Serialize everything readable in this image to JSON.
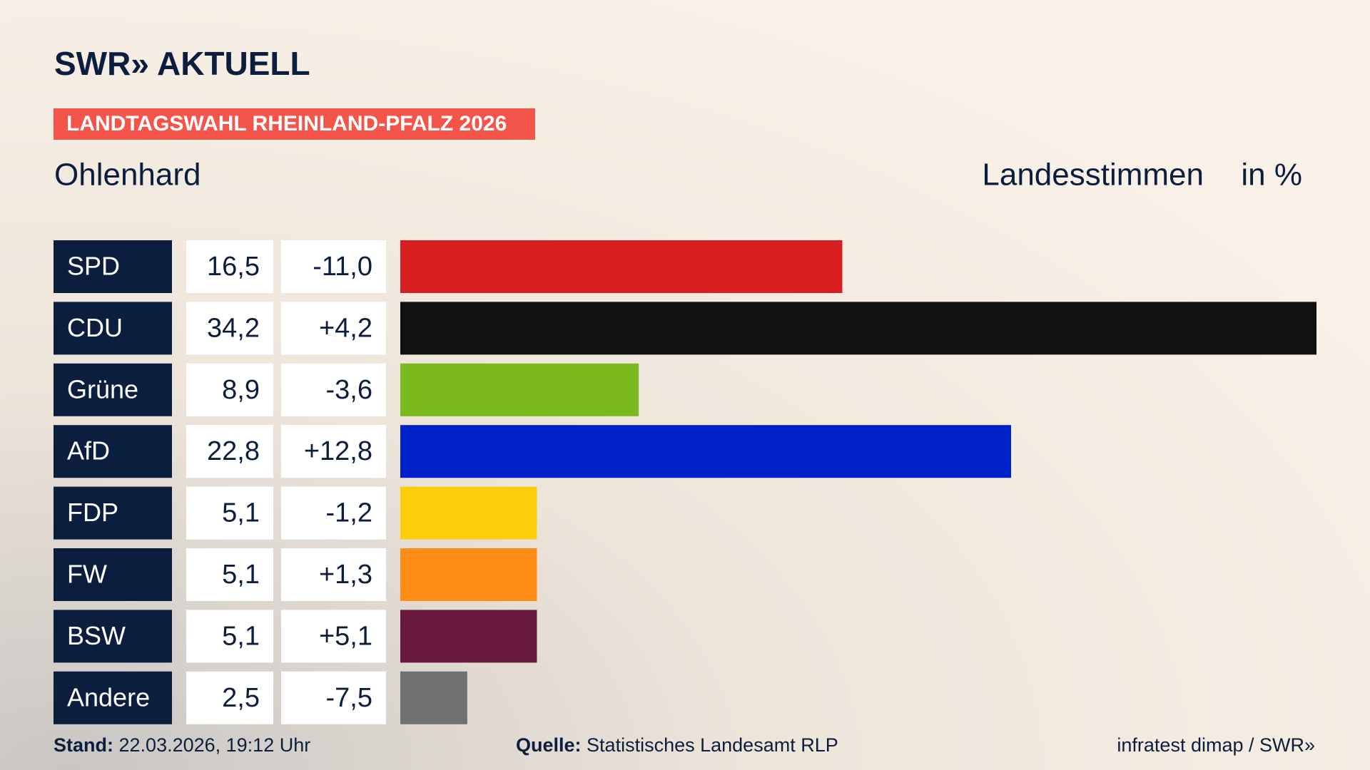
{
  "header": {
    "brand": "SWR» AKTUELL",
    "badge": "LANDTAGSWAHL RHEINLAND-PFALZ 2026"
  },
  "chart_data": {
    "type": "bar",
    "subtitle": "Ohlenhard",
    "value_axis_label": "Landesstimmen",
    "unit": "in %",
    "categories": [
      "SPD",
      "CDU",
      "Grüne",
      "AfD",
      "FDP",
      "FW",
      "BSW",
      "Andere"
    ],
    "values": [
      16.5,
      34.2,
      8.9,
      22.8,
      5.1,
      5.1,
      5.1,
      2.5
    ],
    "value_labels": [
      "16,5",
      "34,2",
      "8,9",
      "22,8",
      "5,1",
      "5,1",
      "5,1",
      "2,5"
    ],
    "changes": [
      -11.0,
      4.2,
      -3.6,
      12.8,
      -1.2,
      1.3,
      5.1,
      -7.5
    ],
    "change_labels": [
      "-11,0",
      "+4,2",
      "-3,6",
      "+12,8",
      "-1,2",
      "+1,3",
      "+5,1",
      "-7,5"
    ],
    "colors": [
      "#d71f1f",
      "#111111",
      "#7aba1e",
      "#0021c8",
      "#fdcd0a",
      "#fd8d17",
      "#69193e",
      "#707070"
    ],
    "xlim": [
      0,
      34.2
    ]
  },
  "footer": {
    "stand_label": "Stand:",
    "stand": "22.03.2026, 19:12 Uhr",
    "source_label": "Quelle:",
    "source": "Statistisches Landesamt RLP",
    "credit": "infratest dimap / SWR»"
  }
}
